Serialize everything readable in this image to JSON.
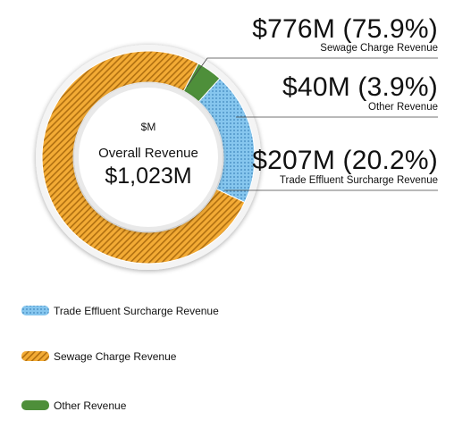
{
  "chart_data": {
    "type": "pie",
    "variant": "donut",
    "unit": "$M",
    "center": {
      "unit_label": "$M",
      "title": "Overall Revenue",
      "total_label": "$1,023M",
      "total": 1023
    },
    "series": [
      {
        "name": "Sewage Charge Revenue",
        "value": 776,
        "percent": 75.9,
        "value_label": "$776M (75.9%)",
        "color": "#f0a42a",
        "pattern": "diagonal-hatch"
      },
      {
        "name": "Other Revenue",
        "value": 40,
        "percent": 3.9,
        "value_label": "$40M (3.9%)",
        "color": "#4e8f3a",
        "pattern": "solid"
      },
      {
        "name": "Trade Effluent Surcharge Revenue",
        "value": 207,
        "percent": 20.2,
        "value_label": "$207M (20.2%)",
        "color": "#7fc0e8",
        "pattern": "dots"
      }
    ],
    "legend": {
      "position": "bottom-left",
      "items": [
        {
          "name": "Trade Effluent Surcharge Revenue",
          "color": "#7fc0e8",
          "pattern": "dots"
        },
        {
          "name": "Sewage Charge Revenue",
          "color": "#f0a42a",
          "pattern": "diagonal-hatch"
        },
        {
          "name": "Other Revenue",
          "color": "#4e8f3a",
          "pattern": "solid"
        }
      ]
    }
  }
}
